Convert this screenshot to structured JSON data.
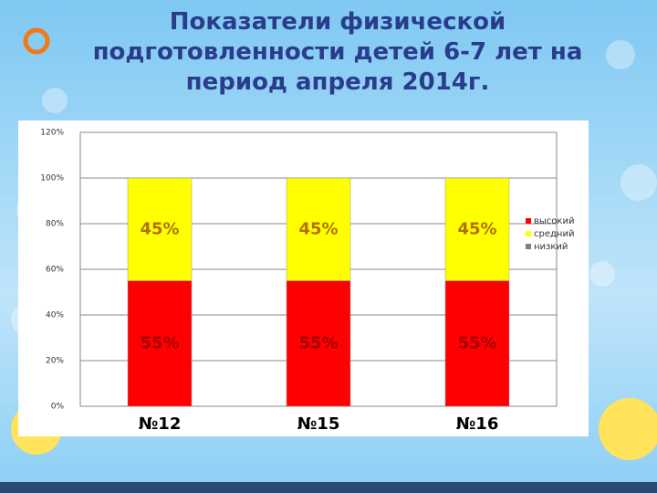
{
  "chart_data": {
    "type": "stacked-bar",
    "title": "Показатели физической подготовленности детей 6-7 лет на период апреля 2014г.",
    "categories": [
      "№12",
      "№15",
      "№16"
    ],
    "series": [
      {
        "name": "высокий",
        "color": "#ff0000",
        "values": [
          55,
          55,
          55
        ],
        "value_labels": [
          "55%",
          "55%",
          "55%"
        ]
      },
      {
        "name": "средний",
        "color": "#ffff00",
        "values": [
          45,
          45,
          45
        ],
        "value_labels": [
          "45%",
          "45%",
          "45%"
        ]
      },
      {
        "name": "низкий",
        "color": "#808080",
        "values": [
          0,
          0,
          0
        ]
      }
    ],
    "ylim": [
      0,
      120
    ],
    "yticks": [
      {
        "value": 0,
        "label": "0%"
      },
      {
        "value": 20,
        "label": "20%"
      },
      {
        "value": 40,
        "label": "40%"
      },
      {
        "value": 60,
        "label": "60%"
      },
      {
        "value": 80,
        "label": "80%"
      },
      {
        "value": 100,
        "label": "100%"
      },
      {
        "value": 120,
        "label": "120%"
      }
    ],
    "grid": true,
    "legend": "right"
  }
}
